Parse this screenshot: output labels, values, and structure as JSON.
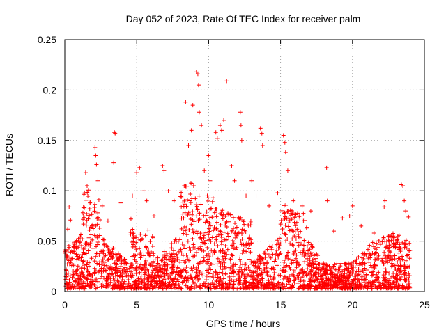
{
  "chart_data": {
    "type": "scatter",
    "title": "Day 052 of 2023, Rate Of TEC Index for receiver palm",
    "xlabel": "GPS time / hours",
    "ylabel": "ROTI / TECUs",
    "xlim": [
      0,
      25
    ],
    "ylim": [
      0,
      0.25
    ],
    "x_ticks": [
      0,
      5,
      10,
      15,
      20,
      25
    ],
    "x_tick_labels": [
      "0",
      "5",
      "10",
      "15",
      "20",
      "25"
    ],
    "y_ticks": [
      0,
      0.05,
      0.1,
      0.15,
      0.2,
      0.25
    ],
    "y_tick_labels": [
      "0",
      "0.05",
      "0.1",
      "0.15",
      "0.2",
      "0.25"
    ],
    "grid": true,
    "marker": "+",
    "color": "#ff0000",
    "series": [
      {
        "points": [
          [
            0.2,
            0.062
          ],
          [
            0.3,
            0.084
          ],
          [
            0.4,
            0.071
          ],
          [
            0.5,
            0.04
          ],
          [
            0.8,
            0.037
          ],
          [
            1.3,
            0.075
          ],
          [
            1.45,
            0.118
          ],
          [
            1.55,
            0.105
          ],
          [
            1.75,
            0.088
          ],
          [
            2.1,
            0.143
          ],
          [
            2.15,
            0.135
          ],
          [
            2.2,
            0.126
          ],
          [
            2.3,
            0.11
          ],
          [
            2.6,
            0.085
          ],
          [
            3.0,
            0.07
          ],
          [
            3.4,
            0.128
          ],
          [
            3.45,
            0.158
          ],
          [
            3.5,
            0.157
          ],
          [
            3.9,
            0.088
          ],
          [
            4.6,
            0.072
          ],
          [
            4.7,
            0.095
          ],
          [
            5.0,
            0.118
          ],
          [
            5.2,
            0.123
          ],
          [
            5.5,
            0.1
          ],
          [
            5.7,
            0.09
          ],
          [
            6.2,
            0.075
          ],
          [
            6.8,
            0.125
          ],
          [
            6.9,
            0.12
          ],
          [
            7.2,
            0.1
          ],
          [
            7.6,
            0.09
          ],
          [
            8.1,
            0.094
          ],
          [
            8.3,
            0.105
          ],
          [
            8.4,
            0.188
          ],
          [
            8.6,
            0.145
          ],
          [
            8.8,
            0.16
          ],
          [
            8.9,
            0.185
          ],
          [
            9.15,
            0.218
          ],
          [
            9.25,
            0.216
          ],
          [
            9.3,
            0.205
          ],
          [
            9.35,
            0.178
          ],
          [
            9.5,
            0.165
          ],
          [
            9.7,
            0.12
          ],
          [
            10.0,
            0.135
          ],
          [
            10.1,
            0.11
          ],
          [
            10.5,
            0.158
          ],
          [
            10.6,
            0.152
          ],
          [
            10.8,
            0.165
          ],
          [
            10.9,
            0.16
          ],
          [
            11.05,
            0.17
          ],
          [
            11.25,
            0.209
          ],
          [
            11.6,
            0.125
          ],
          [
            11.8,
            0.11
          ],
          [
            12.2,
            0.178
          ],
          [
            12.25,
            0.165
          ],
          [
            12.3,
            0.15
          ],
          [
            12.6,
            0.095
          ],
          [
            13.0,
            0.11
          ],
          [
            13.3,
            0.095
          ],
          [
            13.6,
            0.162
          ],
          [
            13.7,
            0.157
          ],
          [
            13.75,
            0.145
          ],
          [
            14.2,
            0.085
          ],
          [
            14.8,
            0.098
          ],
          [
            15.2,
            0.155
          ],
          [
            15.3,
            0.148
          ],
          [
            15.35,
            0.138
          ],
          [
            15.5,
            0.12
          ],
          [
            15.9,
            0.09
          ],
          [
            16.5,
            0.085
          ],
          [
            17.1,
            0.08
          ],
          [
            18.2,
            0.123
          ],
          [
            18.25,
            0.09
          ],
          [
            18.7,
            0.06
          ],
          [
            19.3,
            0.073
          ],
          [
            19.8,
            0.075
          ],
          [
            20.0,
            0.085
          ],
          [
            20.6,
            0.065
          ],
          [
            21.5,
            0.058
          ],
          [
            22.2,
            0.084
          ],
          [
            22.25,
            0.09
          ],
          [
            22.5,
            0.055
          ],
          [
            23.4,
            0.106
          ],
          [
            23.5,
            0.105
          ],
          [
            23.6,
            0.09
          ],
          [
            23.7,
            0.08
          ],
          [
            23.9,
            0.074
          ]
        ]
      }
    ]
  }
}
